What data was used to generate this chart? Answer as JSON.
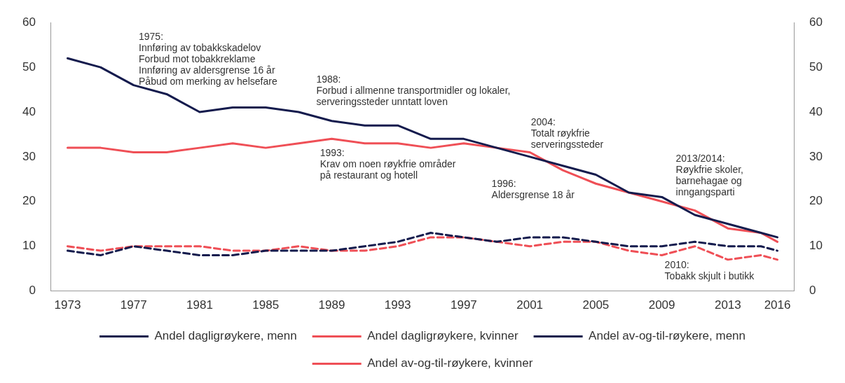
{
  "chart_data": {
    "type": "line",
    "x": [
      1973,
      1975,
      1977,
      1979,
      1981,
      1983,
      1985,
      1987,
      1989,
      1991,
      1993,
      1995,
      1997,
      1999,
      2001,
      2003,
      2005,
      2007,
      2009,
      2011,
      2013,
      2015,
      2016
    ],
    "series": [
      {
        "name": "Andel dagligrøykere, menn",
        "color": "#141b4d",
        "line_style": "solid",
        "values": [
          52,
          50,
          46,
          44,
          40,
          41,
          41,
          40,
          38,
          37,
          37,
          34,
          34,
          32,
          30,
          28,
          26,
          22,
          21,
          17,
          15,
          13,
          12
        ]
      },
      {
        "name": "Andel dagligrøykere, kvinner",
        "color": "#ef4f56",
        "line_style": "solid",
        "values": [
          32,
          32,
          31,
          31,
          32,
          33,
          32,
          33,
          34,
          33,
          33,
          32,
          33,
          32,
          31,
          27,
          24,
          22,
          20,
          18,
          14,
          13,
          11
        ]
      },
      {
        "name": "Andel av-og-til-røykere, menn",
        "color": "#141b4d",
        "line_style": "dashed",
        "values": [
          9,
          8,
          10,
          9,
          8,
          8,
          9,
          9,
          9,
          10,
          11,
          13,
          12,
          11,
          12,
          12,
          11,
          10,
          10,
          11,
          10,
          10,
          9
        ]
      },
      {
        "name": "Andel av-og-til-røykere, kvinner",
        "color": "#ef4f56",
        "line_style": "dashed",
        "values": [
          10,
          9,
          10,
          10,
          10,
          9,
          9,
          10,
          9,
          9,
          10,
          12,
          12,
          11,
          10,
          11,
          11,
          9,
          8,
          10,
          7,
          8,
          7
        ]
      }
    ],
    "xlim": [
      1972,
      2017
    ],
    "xticks": [
      1973,
      1977,
      1981,
      1985,
      1989,
      1993,
      1997,
      2001,
      2005,
      2009,
      2013,
      2016
    ],
    "ylim": [
      0,
      60
    ],
    "yticks": [
      0,
      10,
      20,
      30,
      40,
      50,
      60
    ],
    "y2lim": [
      0,
      60
    ],
    "y2ticks": [
      0,
      10,
      20,
      30,
      40,
      50,
      60
    ],
    "grid": false,
    "legend": "bottom",
    "marker": "none",
    "annotations": [
      "1975:\nInnføring av tobakkskadelov\nForbud mot tobakkreklame\nInnføring av aldersgrense 16 år\nPåbud om merking av helsefare",
      "1988:\nForbud i allmenne transportmidler og lokaler,\nserveringssteder unntatt loven",
      "1993:\nKrav om noen røykfrie områder\npå restaurant og hotell",
      "1996:\nAldersgrense 18 år",
      "2004:\nTotalt røykfrie\nserveringssteder",
      "2013/2014:\nRøykfrie skoler,\nbarnehagae og\ninngangsparti",
      "2010:\nTobakk skjult i butikk"
    ]
  }
}
